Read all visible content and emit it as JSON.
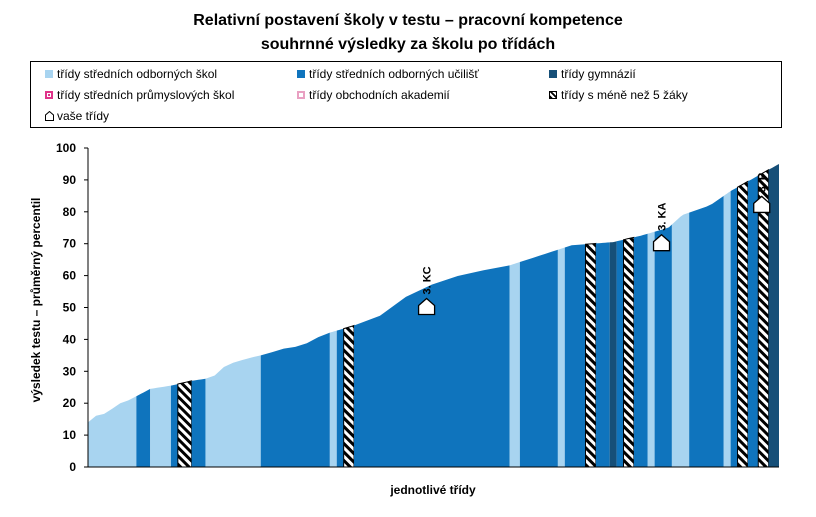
{
  "title_line1": "Relativní postavení školy v testu – pracovní kompetence",
  "title_line2": "souhrnné výsledky za školu po třídách",
  "legend": [
    {
      "label": "třídy středních odborných škol",
      "color": "#a8d4f0",
      "pattern": "solid"
    },
    {
      "label": "třídy středních odborných učilišť",
      "color": "#0f74bd",
      "pattern": "solid"
    },
    {
      "label": "třídy gymnázií",
      "color": "#164f78",
      "pattern": "solid"
    },
    {
      "label": "třídy středních průmyslových škol",
      "color": "#e0338a",
      "pattern": "outline-fill"
    },
    {
      "label": "třídy obchodních akademií",
      "color": "#e9a0c2",
      "pattern": "outline"
    },
    {
      "label": "třídy s méně než 5 žáky",
      "color": "#000000",
      "pattern": "hatch"
    },
    {
      "label": "vaše třídy",
      "color": "#000000",
      "pattern": "house"
    }
  ],
  "chart_data": {
    "type": "area",
    "title": "Relativní postavení školy v testu – pracovní kompetence",
    "subtitle": "souhrnné výsledky za školu po třídách",
    "xlabel": "jednotlivé třídy",
    "ylabel": "výsledek testu – průměrný percentil",
    "ylim": [
      0,
      100
    ],
    "yticks": [
      0,
      10,
      20,
      30,
      40,
      50,
      60,
      70,
      80,
      90,
      100
    ],
    "grid": false,
    "legend_position": "top",
    "x_range": [
      0,
      100
    ],
    "curve": [
      [
        0,
        14
      ],
      [
        1,
        16
      ],
      [
        3,
        17
      ],
      [
        4,
        19.5
      ],
      [
        6,
        21
      ],
      [
        9,
        24.5
      ],
      [
        12,
        25.5
      ],
      [
        15,
        27
      ],
      [
        18,
        28
      ],
      [
        20,
        32
      ],
      [
        23,
        34
      ],
      [
        26,
        35.5
      ],
      [
        28,
        37
      ],
      [
        31,
        38
      ],
      [
        34,
        41.5
      ],
      [
        38,
        44
      ],
      [
        42,
        47
      ],
      [
        45,
        52
      ],
      [
        48,
        56
      ],
      [
        51,
        58
      ],
      [
        55,
        61
      ],
      [
        60,
        62.5
      ],
      [
        65,
        66
      ],
      [
        70,
        69.5
      ],
      [
        76,
        70.5
      ],
      [
        80,
        72.5
      ],
      [
        84,
        75
      ],
      [
        86,
        79
      ],
      [
        90,
        82
      ],
      [
        93,
        86.5
      ],
      [
        100,
        95
      ]
    ],
    "segments": [
      {
        "x0": 0,
        "x1": 7,
        "category": "třídy středních odborných škol"
      },
      {
        "x0": 7,
        "x1": 9,
        "category": "třídy středních odborných učilišť"
      },
      {
        "x0": 9,
        "x1": 12,
        "category": "třídy středních odborných škol"
      },
      {
        "x0": 12,
        "x1": 13,
        "category": "třídy středních odborných učilišť"
      },
      {
        "x0": 13,
        "x1": 15,
        "category": "třídy s méně než 5 žáky"
      },
      {
        "x0": 15,
        "x1": 17,
        "category": "třídy středních odborných učilišť"
      },
      {
        "x0": 17,
        "x1": 25,
        "category": "třídy středních odborných škol"
      },
      {
        "x0": 25,
        "x1": 35,
        "category": "třídy středních odborných učilišť"
      },
      {
        "x0": 35,
        "x1": 36,
        "category": "třídy středních odborných škol"
      },
      {
        "x0": 36,
        "x1": 37,
        "category": "třídy středních odborných učilišť"
      },
      {
        "x0": 37,
        "x1": 38.5,
        "category": "třídy s méně než 5 žáky"
      },
      {
        "x0": 38.5,
        "x1": 61,
        "category": "třídy středních odborných učilišť"
      },
      {
        "x0": 61,
        "x1": 62.5,
        "category": "třídy středních odborných škol"
      },
      {
        "x0": 62.5,
        "x1": 68,
        "category": "třídy středních odborných učilišť"
      },
      {
        "x0": 68,
        "x1": 69,
        "category": "třídy středních odborných škol"
      },
      {
        "x0": 69,
        "x1": 72,
        "category": "třídy středních odborných učilišť"
      },
      {
        "x0": 72,
        "x1": 73.5,
        "category": "třídy s méně než 5 žáky"
      },
      {
        "x0": 73.5,
        "x1": 75.5,
        "category": "třídy středních odborných učilišť"
      },
      {
        "x0": 75.5,
        "x1": 76.5,
        "category": "třídy gymnázií"
      },
      {
        "x0": 76.5,
        "x1": 77.5,
        "category": "třídy středních odborných učilišť"
      },
      {
        "x0": 77.5,
        "x1": 79,
        "category": "třídy s méně než 5 žáky"
      },
      {
        "x0": 79,
        "x1": 81,
        "category": "třídy středních odborných učilišť"
      },
      {
        "x0": 81,
        "x1": 82,
        "category": "třídy středních odborných škol"
      },
      {
        "x0": 82,
        "x1": 84.5,
        "category": "třídy středních odborných učilišť"
      },
      {
        "x0": 84.5,
        "x1": 87,
        "category": "třídy středních odborných škol"
      },
      {
        "x0": 87,
        "x1": 92,
        "category": "třídy středních odborných učilišť"
      },
      {
        "x0": 92,
        "x1": 93,
        "category": "třídy středních odborných škol"
      },
      {
        "x0": 93,
        "x1": 94,
        "category": "třídy středních odborných učilišť"
      },
      {
        "x0": 94,
        "x1": 95.5,
        "category": "třídy s méně než 5 žáky"
      },
      {
        "x0": 95.5,
        "x1": 97,
        "category": "třídy středních odborných učilišť"
      },
      {
        "x0": 97,
        "x1": 98.5,
        "category": "třídy s méně než 5 žáky"
      },
      {
        "x0": 98.5,
        "x1": 100,
        "category": "třídy gymnázií"
      }
    ],
    "your_classes": [
      {
        "label": "3. KC",
        "x": 49,
        "y": 50
      },
      {
        "label": "3. KA",
        "x": 83,
        "y": 70
      },
      {
        "label": "3. P",
        "x": 97.5,
        "y": 82
      }
    ]
  }
}
